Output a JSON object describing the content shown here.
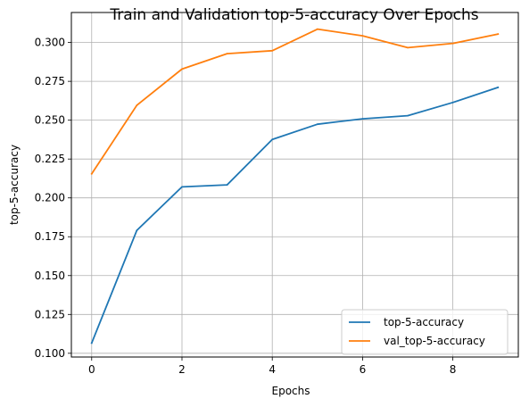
{
  "chart_data": {
    "type": "line",
    "title": "Train and Validation top-5-accuracy Over Epochs",
    "xlabel": "Epochs",
    "ylabel": "top-5-accuracy",
    "x": [
      0,
      1,
      2,
      3,
      4,
      5,
      6,
      7,
      8,
      9
    ],
    "xlim": [
      -0.45,
      9.45
    ],
    "ylim": [
      0.0976,
      0.3193
    ],
    "xticks": [
      0,
      2,
      4,
      6,
      8
    ],
    "xtick_labels": [
      "0",
      "2",
      "4",
      "6",
      "8"
    ],
    "yticks": [
      0.1,
      0.125,
      0.15,
      0.175,
      0.2,
      0.225,
      0.25,
      0.275,
      0.3
    ],
    "ytick_labels": [
      "0.100",
      "0.125",
      "0.150",
      "0.175",
      "0.200",
      "0.225",
      "0.250",
      "0.275",
      "0.300"
    ],
    "grid": true,
    "legend_position": "bottom-right",
    "series": [
      {
        "name": "top-5-accuracy",
        "color": "#1f77b4",
        "values": [
          0.1066,
          0.1791,
          0.2071,
          0.2084,
          0.2376,
          0.2474,
          0.2509,
          0.2529,
          0.2614,
          0.2711
        ]
      },
      {
        "name": "val_top-5-accuracy",
        "color": "#ff7f0e",
        "values": [
          0.2155,
          0.2596,
          0.2829,
          0.2928,
          0.2947,
          0.3086,
          0.3043,
          0.2967,
          0.2994,
          0.3054
        ]
      }
    ]
  }
}
